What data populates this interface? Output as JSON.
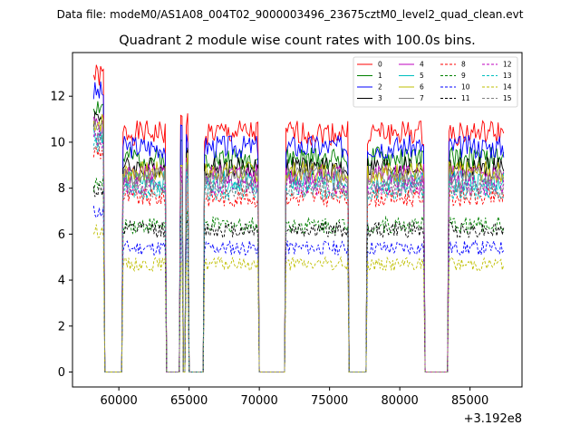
{
  "header": {
    "suptitle": "Data file: modeM0/AS1A08_004T02_9000003496_23675cztM0_level2_quad_clean.evt"
  },
  "chart_data": {
    "type": "line",
    "title": "Quadrant 2 module wise count rates with 100.0s bins.",
    "xlabel": "",
    "ylabel": "",
    "x_offset_label": "+3.192e8",
    "xlim": [
      56700,
      88700
    ],
    "ylim": [
      -0.65,
      13.9
    ],
    "xticks": [
      60000,
      65000,
      70000,
      75000,
      80000,
      85000
    ],
    "xtick_labels": [
      "60000",
      "65000",
      "70000",
      "75000",
      "80000",
      "85000"
    ],
    "yticks": [
      0,
      2,
      4,
      6,
      8,
      10,
      12
    ],
    "ytick_labels": [
      "0",
      "2",
      "4",
      "6",
      "8",
      "10",
      "12"
    ],
    "bin_s": 100,
    "x_start": 58200,
    "x_end": 87400,
    "active_intervals": [
      [
        58200,
        58900
      ],
      [
        60300,
        63300
      ],
      [
        64350,
        64550
      ],
      [
        64800,
        64900
      ],
      [
        66100,
        69900
      ],
      [
        71900,
        76300
      ],
      [
        77700,
        81700
      ],
      [
        83500,
        87400
      ]
    ],
    "series": [
      {
        "name": "0",
        "color": "#ff0000",
        "dash": "solid",
        "level": 10.4
      },
      {
        "name": "1",
        "color": "#008000",
        "dash": "solid",
        "level": 9.3
      },
      {
        "name": "2",
        "color": "#0000ff",
        "dash": "solid",
        "level": 9.8
      },
      {
        "name": "3",
        "color": "#000000",
        "dash": "solid",
        "level": 8.9
      },
      {
        "name": "4",
        "color": "#bf00bf",
        "dash": "solid",
        "level": 8.6
      },
      {
        "name": "5",
        "color": "#00bfbf",
        "dash": "solid",
        "level": 8.3
      },
      {
        "name": "6",
        "color": "#bfbf00",
        "dash": "solid",
        "level": 8.7
      },
      {
        "name": "7",
        "color": "#808080",
        "dash": "solid",
        "level": 8.5
      },
      {
        "name": "8",
        "color": "#ff0000",
        "dash": "dashed",
        "level": 7.6
      },
      {
        "name": "9",
        "color": "#008000",
        "dash": "dashed",
        "level": 6.4
      },
      {
        "name": "10",
        "color": "#0000ff",
        "dash": "dashed",
        "level": 5.4
      },
      {
        "name": "11",
        "color": "#000000",
        "dash": "dashed",
        "level": 6.2
      },
      {
        "name": "12",
        "color": "#bf00bf",
        "dash": "dashed",
        "level": 8.1
      },
      {
        "name": "13",
        "color": "#00bfbf",
        "dash": "dashed",
        "level": 7.9
      },
      {
        "name": "14",
        "color": "#bfbf00",
        "dash": "dashed",
        "level": 4.7
      },
      {
        "name": "15",
        "color": "#808080",
        "dash": "dashed",
        "level": 8.0
      }
    ],
    "legend": {
      "location": "upper right",
      "columns": 4
    }
  }
}
